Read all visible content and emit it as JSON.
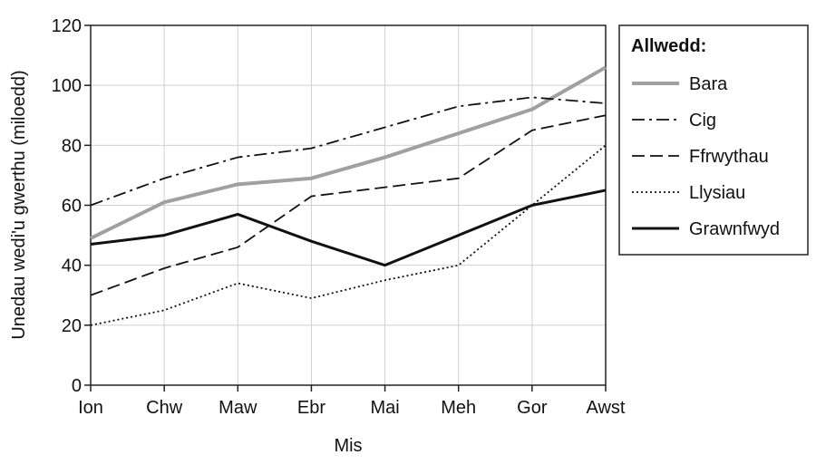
{
  "chart_data": {
    "type": "line",
    "title": "",
    "xlabel": "Mis",
    "ylabel": "Unedau wedi'u gwerthu (miloedd)",
    "categories": [
      "Ion",
      "Chw",
      "Maw",
      "Ebr",
      "Mai",
      "Meh",
      "Gor",
      "Awst"
    ],
    "ylim": [
      0,
      120
    ],
    "yticks": [
      0,
      20,
      40,
      60,
      80,
      100,
      120
    ],
    "grid": true,
    "legend": {
      "title": "Allwedd:",
      "position": "right"
    },
    "series": [
      {
        "name": "Bara",
        "values": [
          49,
          61,
          67,
          69,
          76,
          84,
          92,
          106
        ],
        "color": "#a0a0a0",
        "style": "solid-thick"
      },
      {
        "name": "Cig",
        "values": [
          60,
          69,
          76,
          79,
          86,
          93,
          96,
          94
        ],
        "color": "#111111",
        "style": "dashdot"
      },
      {
        "name": "Ffrwythau",
        "values": [
          30,
          39,
          46,
          63,
          66,
          69,
          85,
          90
        ],
        "color": "#111111",
        "style": "dashed"
      },
      {
        "name": "Llysiau",
        "values": [
          20,
          25,
          34,
          29,
          35,
          40,
          60,
          80
        ],
        "color": "#111111",
        "style": "dotted"
      },
      {
        "name": "Grawnfwyd",
        "values": [
          47,
          50,
          57,
          48,
          40,
          50,
          60,
          65
        ],
        "color": "#111111",
        "style": "solid"
      }
    ]
  }
}
